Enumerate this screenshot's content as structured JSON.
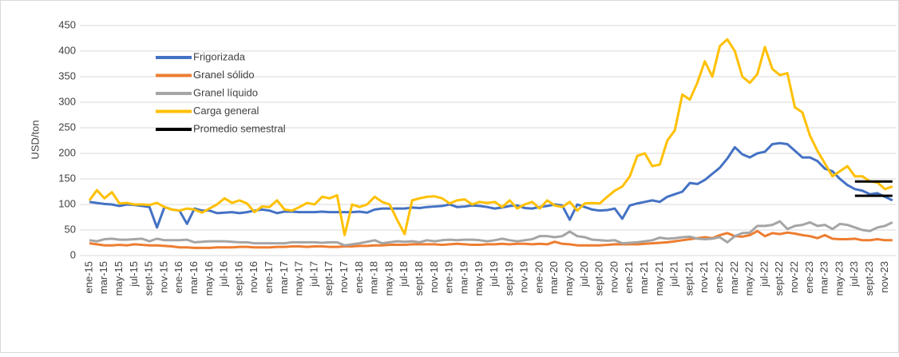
{
  "chart_data": {
    "type": "line",
    "ylabel": "USD/ton",
    "categories": [
      "ene-15",
      null,
      "mar-15",
      null,
      "may-15",
      null,
      "jul-15",
      null,
      "sept-15",
      null,
      "nov-15",
      null,
      "ene-16",
      null,
      "mar-16",
      null,
      "may-16",
      null,
      "jul-16",
      null,
      "sept-16",
      null,
      "nov-16",
      null,
      "ene-17",
      null,
      "mar-17",
      null,
      "may-17",
      null,
      "jul-17",
      null,
      "sept-17",
      null,
      "nov-17",
      null,
      "ene-18",
      null,
      "mar-18",
      null,
      "may-18",
      null,
      "jul-18",
      null,
      "sept-18",
      null,
      "nov-18",
      null,
      "ene-19",
      null,
      "mar-19",
      null,
      "may-19",
      null,
      "jul-19",
      null,
      "sept-19",
      null,
      "nov-19",
      null,
      "ene-20",
      null,
      "mar-20",
      null,
      "may-20",
      null,
      "jul-20",
      null,
      "sept-20",
      null,
      "nov-20",
      null,
      "ene-21",
      null,
      "mar-21",
      null,
      "may-21",
      null,
      "jul-21",
      null,
      "sept-21",
      null,
      "nov-21",
      null,
      "ene-22",
      null,
      "mar-22",
      null,
      "may-22",
      null,
      "jul-22",
      null,
      "sept-22",
      null,
      "nov-22",
      null,
      "ene-23",
      null,
      "mar-23",
      null,
      "may-23",
      null,
      "jul-23",
      null,
      "sept-23",
      null,
      "nov-23",
      null
    ],
    "series": [
      {
        "name": "Frigorizada",
        "color": "#4472c4",
        "values": [
          105,
          103,
          101,
          100,
          97,
          100,
          99,
          97,
          95,
          55,
          95,
          90,
          88,
          62,
          92,
          88,
          88,
          83,
          84,
          85,
          83,
          85,
          88,
          90,
          88,
          83,
          86,
          86,
          85,
          85,
          85,
          86,
          85,
          85,
          85,
          85,
          86,
          84,
          90,
          92,
          92,
          92,
          92,
          94,
          93,
          95,
          96,
          97,
          100,
          95,
          96,
          98,
          97,
          95,
          92,
          94,
          97,
          98,
          93,
          92,
          95,
          97,
          100,
          98,
          70,
          100,
          95,
          90,
          88,
          89,
          92,
          72,
          98,
          102,
          105,
          108,
          105,
          115,
          120,
          125,
          142,
          140,
          148,
          160,
          172,
          190,
          212,
          198,
          192,
          200,
          203,
          218,
          220,
          218,
          205,
          192,
          192,
          185,
          170,
          165,
          150,
          138,
          130,
          127,
          120,
          122,
          115,
          108
        ]
      },
      {
        "name": "Granel sólido",
        "color": "#ed7d31",
        "values": [
          24,
          22,
          20,
          20,
          21,
          20,
          22,
          21,
          20,
          20,
          19,
          18,
          16,
          16,
          15,
          15,
          15,
          16,
          16,
          16,
          17,
          17,
          16,
          16,
          16,
          17,
          17,
          18,
          18,
          17,
          18,
          18,
          17,
          17,
          18,
          18,
          19,
          19,
          20,
          20,
          21,
          21,
          21,
          22,
          22,
          22,
          22,
          21,
          22,
          23,
          22,
          21,
          21,
          22,
          22,
          23,
          22,
          23,
          23,
          22,
          23,
          22,
          27,
          23,
          22,
          20,
          20,
          20,
          20,
          21,
          22,
          22,
          22,
          22,
          23,
          24,
          25,
          26,
          28,
          30,
          32,
          34,
          36,
          34,
          40,
          44,
          38,
          37,
          40,
          48,
          38,
          44,
          42,
          45,
          43,
          40,
          38,
          34,
          40,
          33,
          32,
          32,
          33,
          30,
          30,
          32,
          30,
          30
        ]
      },
      {
        "name": "Granel líquido",
        "color": "#a5a5a5",
        "values": [
          30,
          28,
          32,
          33,
          31,
          31,
          32,
          33,
          28,
          33,
          30,
          30,
          30,
          31,
          26,
          27,
          28,
          28,
          28,
          27,
          26,
          26,
          24,
          24,
          24,
          24,
          24,
          26,
          26,
          26,
          26,
          25,
          26,
          26,
          20,
          22,
          24,
          27,
          30,
          24,
          26,
          28,
          27,
          28,
          26,
          30,
          28,
          30,
          31,
          30,
          31,
          31,
          30,
          28,
          30,
          33,
          30,
          28,
          30,
          32,
          38,
          38,
          36,
          38,
          47,
          38,
          36,
          31,
          30,
          29,
          30,
          24,
          25,
          26,
          28,
          30,
          35,
          33,
          34,
          36,
          37,
          33,
          32,
          33,
          36,
          26,
          38,
          44,
          45,
          58,
          58,
          60,
          67,
          52,
          58,
          60,
          65,
          58,
          60,
          52,
          62,
          60,
          55,
          50,
          48,
          55,
          58,
          65
        ]
      },
      {
        "name": "Carga general",
        "color": "#ffc000",
        "values": [
          108,
          128,
          112,
          124,
          102,
          103,
          100,
          100,
          99,
          103,
          95,
          90,
          88,
          92,
          90,
          84,
          92,
          100,
          112,
          103,
          108,
          102,
          85,
          96,
          95,
          108,
          90,
          88,
          95,
          103,
          100,
          115,
          112,
          118,
          40,
          100,
          95,
          100,
          115,
          105,
          100,
          70,
          42,
          108,
          112,
          115,
          116,
          112,
          102,
          108,
          110,
          100,
          105,
          103,
          105,
          95,
          108,
          92,
          100,
          105,
          92,
          108,
          98,
          95,
          105,
          88,
          102,
          103,
          102,
          115,
          127,
          135,
          155,
          195,
          200,
          175,
          178,
          225,
          245,
          315,
          305,
          338,
          380,
          350,
          410,
          423,
          400,
          350,
          338,
          355,
          408,
          365,
          353,
          357,
          290,
          280,
          235,
          205,
          180,
          155,
          165,
          175,
          155,
          155,
          145,
          143,
          130,
          135
        ]
      },
      {
        "name": "Promedio semestral",
        "color": "#000000",
        "segments": [
          {
            "from": 102,
            "to": 107,
            "value": 145
          },
          {
            "from": 102,
            "to": 107,
            "value": 117
          }
        ]
      }
    ],
    "ylim": [
      0,
      450
    ],
    "yticks": [
      0,
      50,
      100,
      150,
      200,
      250,
      300,
      350,
      400,
      450
    ],
    "grid": true
  }
}
